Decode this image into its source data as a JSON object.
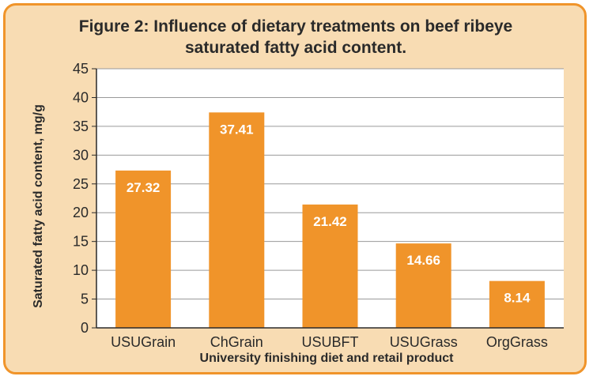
{
  "chart_data": {
    "type": "bar",
    "title": "Figure 2: Influence of dietary treatments on beef ribeye",
    "title_line2": "saturated fatty acid content.",
    "xlabel": "University finishing diet and retail product",
    "ylabel": "Saturated fatty acid content, mg/g",
    "categories": [
      "USUGrain",
      "ChGrain",
      "USUBFT",
      "USUGrass",
      "OrgGrass"
    ],
    "values": [
      27.32,
      37.41,
      21.42,
      14.66,
      8.14
    ],
    "value_labels": [
      "27.32",
      "37.41",
      "21.42",
      "14.66",
      "8.14"
    ],
    "ylim": [
      0,
      45
    ],
    "yticks": [
      0,
      5,
      10,
      15,
      20,
      25,
      30,
      35,
      40,
      45
    ],
    "grid": true,
    "colors": {
      "bar": "#f0942a",
      "background": "#f8dcb3",
      "border": "#f0942a",
      "plot_area": "#ffffff",
      "gridline": "#9a9a9a",
      "axis": "#2a2a2a"
    }
  }
}
